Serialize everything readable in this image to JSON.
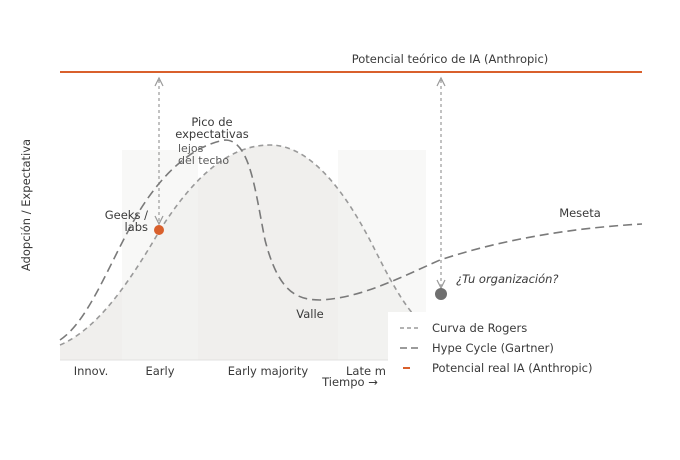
{
  "diagram": {
    "y_axis_label": "Adopción / Expectativa",
    "x_axis_label": "Tiempo →",
    "ceiling_label": "Potencial teórico de IA (Anthropic)",
    "stages": [
      "Innov.",
      "Early",
      "Early majority",
      "Late m"
    ],
    "annotations": {
      "peak_line1": "Pico de",
      "peak_line2": "expectativas",
      "far_line1": "lejos",
      "far_line2": "del techo",
      "geeks_line1": "Geeks /",
      "geeks_line2": "labs",
      "valley": "Valle",
      "plateau": "Meseta",
      "org_question": "¿Tu organización?"
    },
    "legend": [
      {
        "label": "Curva de Rogers",
        "style": "short-dash",
        "color": "#9a9a9a"
      },
      {
        "label": "Hype Cycle (Gartner)",
        "style": "long-dash",
        "color": "#7a7a7a"
      },
      {
        "label": "Potencial real IA (Anthropic)",
        "style": "solid",
        "color": "#d9602c"
      }
    ],
    "colors": {
      "accent": "#d9602c",
      "gray_marker": "#6f6f6f",
      "curve": "#9a9a9a",
      "hype": "#7a7a7a",
      "fill": "#ececea"
    }
  }
}
